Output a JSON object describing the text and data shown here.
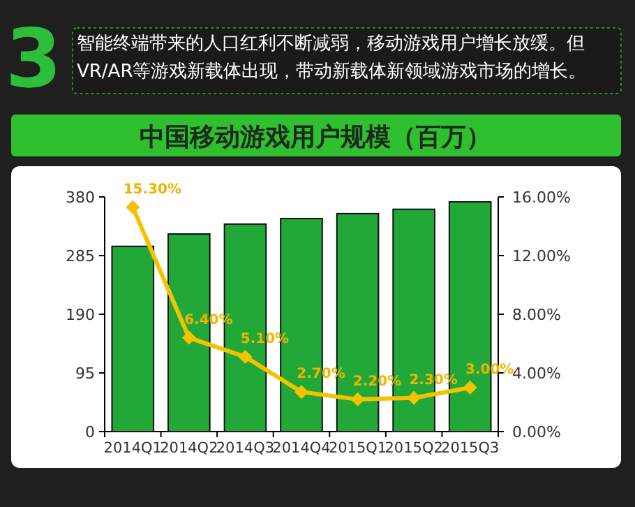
{
  "chart_data": {
    "type": "bar",
    "title": "中国移动游戏用户规模（百万）",
    "subtitle": "智能终端带来的人口红利不断减弱，移动游戏用户增长放缓。但VR/AR等游戏新载体出现，带动新载体新领域游戏市场的增长。",
    "annotations": [
      "3"
    ],
    "categories": [
      "2014Q1",
      "2014Q2",
      "2014Q3",
      "2014Q4",
      "2015Q1",
      "2015Q2",
      "2015Q3"
    ],
    "series": [
      {
        "color": "#22a838",
        "values": [
          300,
          320,
          336,
          345,
          353,
          360,
          372
        ]
      },
      {
        "type": "line",
        "axis": "y2",
        "color": "#f5c200",
        "marker": "diamond",
        "values": [
          15.3,
          6.4,
          5.1,
          2.7,
          2.2,
          2.3,
          3.0
        ],
        "value_labels": [
          "15.30%",
          "6.40%",
          "5.10%",
          "2.70%",
          "2.20%",
          "2.30%",
          "3.00%"
        ]
      }
    ],
    "ylim": [
      0,
      380
    ],
    "yticks": [
      0,
      95,
      190,
      285,
      380
    ],
    "y2lim": [
      0,
      16
    ],
    "y2ticks": [
      {
        "value": 0,
        "label": "0.00%"
      },
      {
        "value": 4,
        "label": "4.00%"
      },
      {
        "value": 8,
        "label": "8.00%"
      },
      {
        "value": 12,
        "label": "12.00%"
      },
      {
        "value": 16,
        "label": "16.00%"
      }
    ],
    "grid": false
  }
}
